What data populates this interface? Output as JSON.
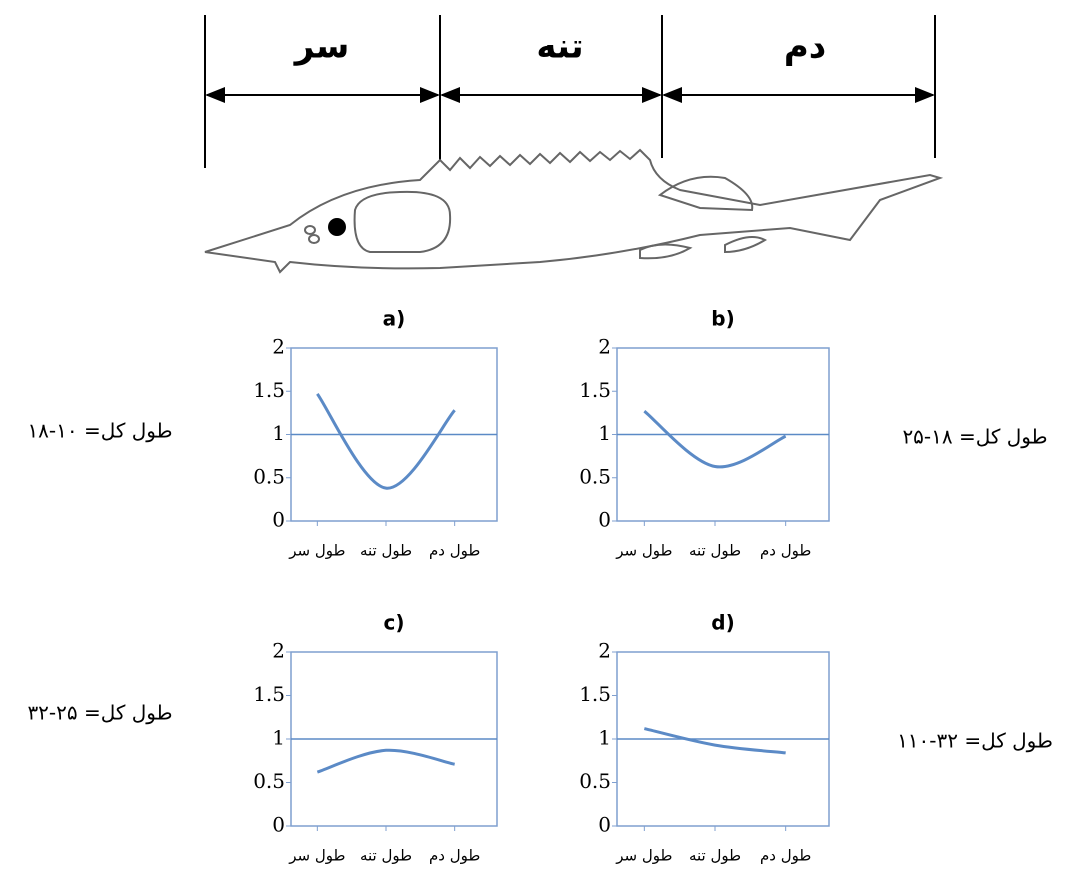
{
  "diagram": {
    "labels": [
      "سر",
      "تنه",
      "دم"
    ]
  },
  "chart_data": [
    {
      "type": "line",
      "title": "a)",
      "annotation": "طول کل= ۱۰-۱۸",
      "categories": [
        "طول سر",
        "طول تنه",
        "طول دم"
      ],
      "values": [
        1.47,
        0.38,
        1.28
      ],
      "color": "#5b8ac6",
      "ylim": [
        0,
        2
      ],
      "yticks": [
        0,
        0.5,
        1,
        1.5,
        2
      ],
      "reference_line": 1
    },
    {
      "type": "line",
      "title": "b)",
      "annotation": "طول کل= ۱۸-۲۵",
      "categories": [
        "طول سر",
        "طول تنه",
        "طول دم"
      ],
      "values": [
        1.27,
        0.63,
        0.98
      ],
      "color": "#5b8ac6",
      "ylim": [
        0,
        2
      ],
      "yticks": [
        0,
        0.5,
        1,
        1.5,
        2
      ],
      "reference_line": 1
    },
    {
      "type": "line",
      "title": "c)",
      "annotation": "طول کل= ۲۵-۳۲",
      "categories": [
        "طول سر",
        "طول تنه",
        "طول دم"
      ],
      "values": [
        0.62,
        0.87,
        0.71
      ],
      "color": "#5b8ac6",
      "ylim": [
        0,
        2
      ],
      "yticks": [
        0,
        0.5,
        1,
        1.5,
        2
      ],
      "reference_line": 1
    },
    {
      "type": "line",
      "title": "d)",
      "annotation": "طول کل= ۳۲-۱۱۰",
      "categories": [
        "طول سر",
        "طول تنه",
        "طول دم"
      ],
      "values": [
        1.12,
        0.93,
        0.84
      ],
      "color": "#5b8ac6",
      "ylim": [
        0,
        2
      ],
      "yticks": [
        0,
        0.5,
        1,
        1.5,
        2
      ],
      "reference_line": 1
    }
  ]
}
